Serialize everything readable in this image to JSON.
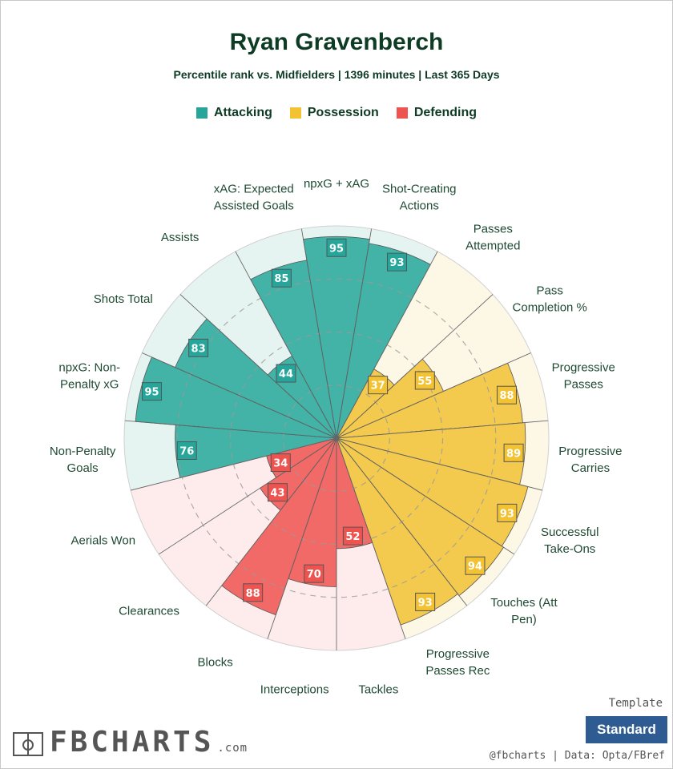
{
  "header": {
    "title": "Ryan Gravenberch",
    "subtitle": "Percentile rank vs. Midfielders | 1396 minutes | Last 365 Days"
  },
  "legend": [
    {
      "label": "Attacking",
      "color": "#26a69a"
    },
    {
      "label": "Possession",
      "color": "#f2c232"
    },
    {
      "label": "Defending",
      "color": "#ef5350"
    }
  ],
  "chart_data": {
    "type": "radar-bar",
    "title": "Ryan Gravenberch",
    "scale": [
      0,
      100
    ],
    "grid_rings": [
      25,
      50,
      75
    ],
    "categories": [
      {
        "label": [
          "npxG + xAG"
        ],
        "value": 95,
        "group": "Attacking"
      },
      {
        "label": [
          "Shot-Creating",
          "Actions"
        ],
        "value": 93,
        "group": "Attacking"
      },
      {
        "label": [
          "Passes",
          "Attempted"
        ],
        "value": 37,
        "group": "Possession"
      },
      {
        "label": [
          "Pass",
          "Completion %"
        ],
        "value": 55,
        "group": "Possession"
      },
      {
        "label": [
          "Progressive",
          "Passes"
        ],
        "value": 88,
        "group": "Possession"
      },
      {
        "label": [
          "Progressive",
          "Carries"
        ],
        "value": 89,
        "group": "Possession"
      },
      {
        "label": [
          "Successful",
          "Take-Ons"
        ],
        "value": 93,
        "group": "Possession"
      },
      {
        "label": [
          "Touches (Att",
          "Pen)"
        ],
        "value": 94,
        "group": "Possession"
      },
      {
        "label": [
          "Progressive",
          "Passes Rec"
        ],
        "value": 93,
        "group": "Possession"
      },
      {
        "label": [
          "Tackles"
        ],
        "value": 52,
        "group": "Defending"
      },
      {
        "label": [
          "Interceptions"
        ],
        "value": 70,
        "group": "Defending"
      },
      {
        "label": [
          "Blocks"
        ],
        "value": 88,
        "group": "Defending"
      },
      {
        "label": [
          "Clearances"
        ],
        "value": 43,
        "group": "Defending"
      },
      {
        "label": [
          "Aerials Won"
        ],
        "value": 34,
        "group": "Defending"
      },
      {
        "label": [
          "Non-Penalty",
          "Goals"
        ],
        "value": 76,
        "group": "Attacking"
      },
      {
        "label": [
          "npxG: Non-",
          "Penalty xG"
        ],
        "value": 95,
        "group": "Attacking"
      },
      {
        "label": [
          "Shots Total"
        ],
        "value": 83,
        "group": "Attacking"
      },
      {
        "label": [
          "Assists"
        ],
        "value": 44,
        "group": "Attacking"
      },
      {
        "label": [
          "xAG: Expected",
          "Assisted Goals"
        ],
        "value": 85,
        "group": "Attacking"
      }
    ],
    "group_colors": {
      "Attacking": {
        "fill": "#26a69a",
        "bg": "#e6f4f1",
        "badge": "#26a69a"
      },
      "Possession": {
        "fill": "#f2c232",
        "bg": "#fdf7e6",
        "badge": "#f2c232"
      },
      "Defending": {
        "fill": "#ef5350",
        "bg": "#fdeceb",
        "badge": "#ef5350"
      }
    }
  },
  "footer": {
    "logo_text": "FBCHARTS",
    "logo_suffix": ".com",
    "template_label": "Template",
    "template_value": "Standard",
    "credit": "@fbcharts | Data: Opta/FBref"
  }
}
